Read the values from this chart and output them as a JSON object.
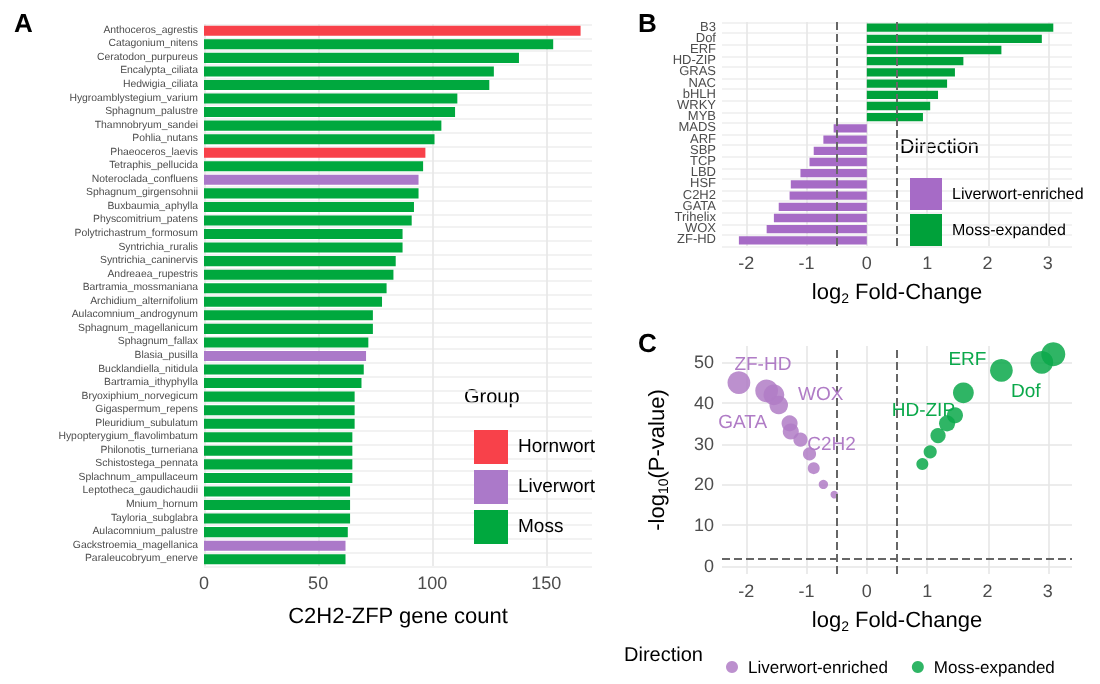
{
  "chart_data": [
    {
      "type": "bar",
      "title": "A",
      "orientation": "horizontal",
      "xlabel": "C2H2-ZFP gene count",
      "legend_title": "Group",
      "legend": "right",
      "grid": true,
      "categories": [
        "Anthoceros_agrestis",
        "Catagonium_nitens",
        "Ceratodon_purpureus",
        "Encalypta_ciliata",
        "Hedwigia_ciliata",
        "Hygroamblystegium_varium",
        "Sphagnum_palustre",
        "Thamnobryum_sandei",
        "Pohlia_nutans",
        "Phaeoceros_laevis",
        "Tetraphis_pellucida",
        "Noteroclada_confluens",
        "Sphagnum_girgensohnii",
        "Buxbaumia_aphylla",
        "Physcomitrium_patens",
        "Polytrichastrum_formosum",
        "Syntrichia_ruralis",
        "Syntrichia_caninervis",
        "Andreaea_rupestris",
        "Bartramia_mossmaniana",
        "Archidium_alternifolium",
        "Aulacomnium_androgynum",
        "Sphagnum_magellanicum",
        "Sphagnum_fallax",
        "Blasia_pusilla",
        "Bucklandiella_nitidula",
        "Bartramia_ithyphylla",
        "Bryoxiphium_norvegicum",
        "Gigaspermum_repens",
        "Pleuridium_subulatum",
        "Hypopterygium_flavolimbatum",
        "Philonotis_turneriana",
        "Schistostega_pennata",
        "Splachnum_ampullaceum",
        "Leptotheca_gaudichaudii",
        "Mnium_hornum",
        "Tayloria_subglabra",
        "Aulacomnium_palustre",
        "Gackstroemia_magellanica",
        "Paraleucobryum_enerve"
      ],
      "series": [
        {
          "name": "Hornwort",
          "color": "#f8414a",
          "values": [
            165,
            null,
            null,
            null,
            null,
            null,
            null,
            null,
            null,
            97,
            null,
            null,
            null,
            null,
            null,
            null,
            null,
            null,
            null,
            null,
            null,
            null,
            null,
            null,
            null,
            null,
            null,
            null,
            null,
            null,
            null,
            null,
            null,
            null,
            null,
            null,
            null,
            null,
            null,
            null
          ]
        },
        {
          "name": "Liverwort",
          "color": "#ab79c9",
          "values": [
            null,
            null,
            null,
            null,
            null,
            null,
            null,
            null,
            null,
            null,
            null,
            94,
            null,
            null,
            null,
            null,
            null,
            null,
            null,
            null,
            null,
            null,
            null,
            null,
            71,
            null,
            null,
            null,
            null,
            null,
            null,
            null,
            null,
            null,
            null,
            null,
            null,
            null,
            62,
            null
          ]
        },
        {
          "name": "Moss",
          "color": "#00a83e",
          "values": [
            null,
            153,
            138,
            127,
            125,
            111,
            110,
            104,
            101,
            null,
            96,
            null,
            94,
            92,
            91,
            87,
            87,
            84,
            83,
            80,
            78,
            74,
            74,
            72,
            null,
            70,
            69,
            66,
            66,
            66,
            65,
            65,
            65,
            65,
            64,
            64,
            64,
            63,
            null,
            62
          ]
        }
      ],
      "xlim": [
        0,
        170
      ],
      "xticks": [
        0,
        50,
        100,
        150
      ]
    },
    {
      "type": "bar",
      "title": "B",
      "orientation": "horizontal",
      "xlabel": "log$_{2}$ Fold-Change",
      "legend_title": "Direction",
      "legend": "right",
      "grid": true,
      "categories": [
        "B3",
        "Dof",
        "ERF",
        "HD-ZIP",
        "GRAS",
        "NAC",
        "bHLH",
        "WRKY",
        "MYB",
        "MADS",
        "ARF",
        "SBP",
        "TCP",
        "LBD",
        "HSF",
        "C2H2",
        "GATA",
        "Trihelix",
        "WOX",
        "ZF-HD"
      ],
      "series": [
        {
          "name": "Liverwort-enriched",
          "color": "#a66bc6",
          "values": [
            null,
            null,
            null,
            null,
            null,
            null,
            null,
            null,
            null,
            -0.55,
            -0.72,
            -0.88,
            -0.95,
            -1.1,
            -1.26,
            -1.28,
            -1.46,
            -1.54,
            -1.66,
            -2.12
          ]
        },
        {
          "name": "Moss-expanded",
          "color": "#00a13a",
          "values": [
            3.09,
            2.9,
            2.23,
            1.6,
            1.46,
            1.33,
            1.18,
            1.05,
            0.93,
            null,
            null,
            null,
            null,
            null,
            null,
            null,
            null,
            null,
            null,
            null
          ]
        }
      ],
      "xlim": [
        -2.4,
        3.4
      ],
      "xticks": [
        -2,
        -1,
        0,
        1,
        2,
        3
      ],
      "ref_lines": [
        {
          "axis": "x",
          "value": -0.5,
          "color": "#666666",
          "line_style": "dashed"
        },
        {
          "axis": "x",
          "value": 0.5,
          "color": "#666666",
          "line_style": "dashed"
        }
      ]
    },
    {
      "type": "bubble",
      "title": "C",
      "xlabel": "log$_{2}$ Fold-Change",
      "ylabel": "-log$_{10}$(P-value)",
      "legend_title": "Direction",
      "legend": "bottom",
      "grid": true,
      "marker": "circle",
      "series": [
        {
          "name": "Liverwort-enriched",
          "color": "#b07cc6",
          "x": [
            -2.12,
            -1.66,
            -1.54,
            -1.46,
            -1.28,
            -1.26,
            -1.1,
            -0.95,
            -0.88,
            -0.72,
            -0.54
          ],
          "values": [
            45,
            43,
            42,
            39.5,
            35,
            33,
            31,
            27.5,
            24,
            20,
            17.5
          ],
          "sizes": [
            0.9,
            0.9,
            0.75,
            0.6,
            0.45,
            0.45,
            0.35,
            0.3,
            0.25,
            0.15,
            0.1
          ]
        },
        {
          "name": "Moss-expanded",
          "color": "#0aa84a",
          "x": [
            0.92,
            1.05,
            1.18,
            1.33,
            1.46,
            1.6,
            2.23,
            2.9,
            3.09
          ],
          "values": [
            25,
            28,
            32,
            35,
            37,
            42.5,
            48,
            50,
            52
          ],
          "sizes": [
            0.25,
            0.3,
            0.4,
            0.45,
            0.45,
            0.75,
            0.9,
            0.9,
            1
          ]
        }
      ],
      "annotations": [
        {
          "text": "ZF-HD",
          "x": -2.12,
          "y": 45
        },
        {
          "text": "GATA",
          "x": -1.46,
          "y": 39.5
        },
        {
          "text": "WOX",
          "x": -1.66,
          "y": 43
        },
        {
          "text": "C2H2",
          "x": -1.28,
          "y": 35
        },
        {
          "text": "HD-ZIP",
          "x": 1.6,
          "y": 42.5
        },
        {
          "text": "ERF",
          "x": 2.23,
          "y": 48
        },
        {
          "text": "Dof",
          "x": 2.9,
          "y": 50
        }
      ],
      "xlim": [
        -2.4,
        3.4
      ],
      "xticks": [
        -2,
        -1,
        0,
        1,
        2,
        3
      ],
      "ylim": [
        -2,
        54
      ],
      "yticks": [
        0,
        10,
        20,
        30,
        40,
        50
      ],
      "ref_lines": [
        {
          "axis": "x",
          "value": -0.5,
          "color": "#666666",
          "line_style": "dashed"
        },
        {
          "axis": "x",
          "value": 0.5,
          "color": "#666666",
          "line_style": "dashed"
        },
        {
          "axis": "y",
          "value": 2,
          "color": "#666666",
          "line_style": "dashed"
        }
      ]
    }
  ]
}
